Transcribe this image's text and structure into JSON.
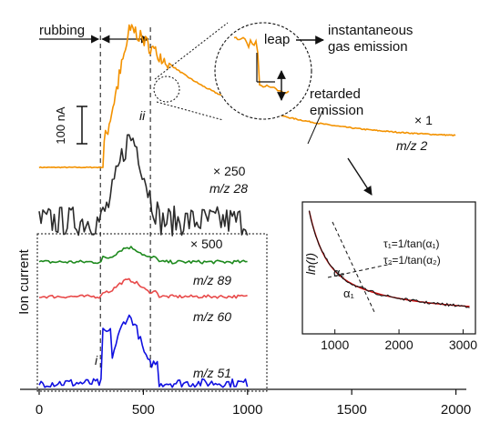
{
  "chart_data": {
    "type": "line",
    "xlim": [
      0,
      2050
    ],
    "x_ticks": [
      0,
      500,
      1000,
      1500,
      2000
    ],
    "ylabel": "Ion current",
    "scale_bar_label": "100 nA",
    "annotations": {
      "rubbing": "rubbing",
      "leap": "leap",
      "instantaneous": "instantaneous\ngas emission",
      "retarded": "retarded\nemission",
      "marker_i": "i",
      "marker_ii": "ii"
    },
    "rubbing_interval": [
      320,
      560
    ],
    "series": [
      {
        "name": "m/z 2",
        "label": "m/z 2",
        "factor": "× 1",
        "color": "#f39200",
        "x_range": [
          0,
          2000
        ],
        "baseline": 0,
        "rise_at": 310,
        "peak_at": 440,
        "peak_value": 100,
        "decay_to": 20,
        "tau": 460,
        "noise": 0.06
      },
      {
        "name": "m/z 28",
        "label": "m/z 28",
        "factor": "× 250",
        "color": "#2b2b2b",
        "x_range": [
          0,
          1000
        ],
        "baseline": 0,
        "peak_at": 440,
        "peak_value": 55,
        "noise": 10
      },
      {
        "name": "m/z 89",
        "label": "m/z 89",
        "factor": "× 500",
        "color": "#1e8a1e",
        "x_range": [
          0,
          1000
        ],
        "baseline": 0,
        "peak_at": 430,
        "peak_value": 10,
        "noise": 1.2
      },
      {
        "name": "m/z 60",
        "label": "m/z 60",
        "factor": "",
        "color": "#e84a4a",
        "x_range": [
          0,
          1000
        ],
        "baseline": 0,
        "peak_at": 430,
        "peak_value": 12,
        "noise": 1.2
      },
      {
        "name": "m/z 51",
        "label": "m/z 51",
        "factor": "",
        "color": "#1010e0",
        "x_range": [
          0,
          1000
        ],
        "baseline": 0,
        "peak_at": 430,
        "peak_value": 45,
        "noise": 3
      }
    ],
    "inset": {
      "type": "line",
      "ylabel": "ln(I)",
      "xlim": [
        550,
        3150
      ],
      "x_ticks": [
        1000,
        2000,
        3000
      ],
      "fit_color": "#cc1111",
      "data_color": "#111111",
      "eq1": "τ₁=1/tan(α₁)",
      "eq2": "τ₂=1/tan(α₂)",
      "alpha2_label": "α₂",
      "alpha1_label": "α₁"
    }
  }
}
